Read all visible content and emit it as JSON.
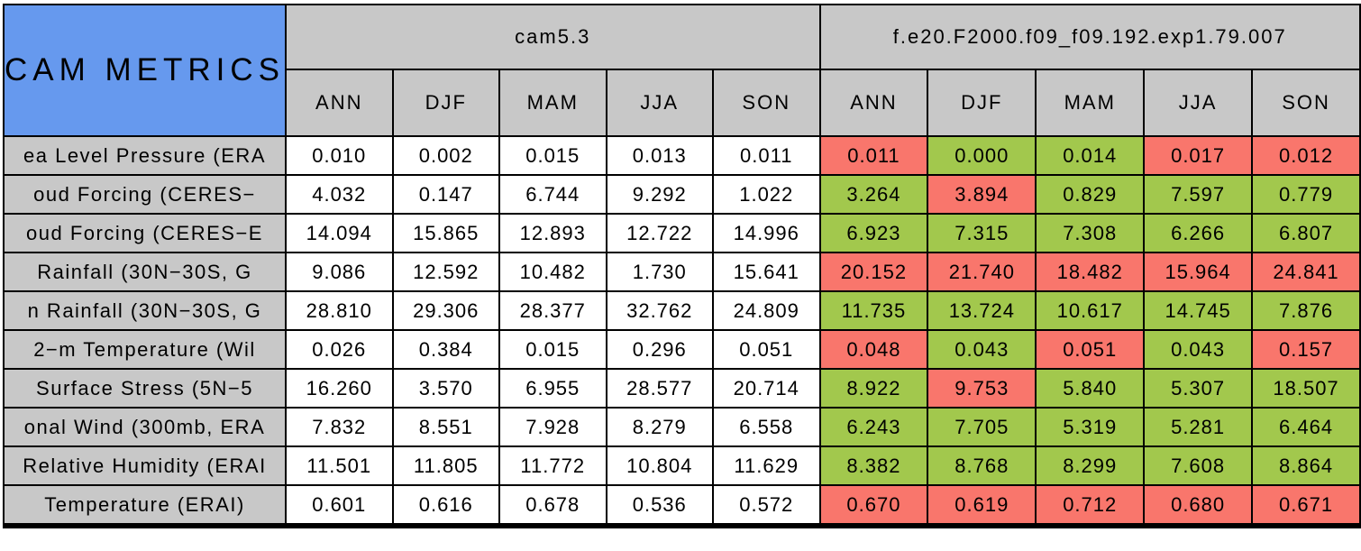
{
  "chart_data": {
    "type": "table",
    "title": "CAM METRICS",
    "column_groups": [
      {
        "label": "cam5.3",
        "seasons": [
          "ANN",
          "DJF",
          "MAM",
          "JJA",
          "SON"
        ]
      },
      {
        "label": "f.e20.F2000.f09_f09.192.exp1.79.007",
        "seasons": [
          "ANN",
          "DJF",
          "MAM",
          "JJA",
          "SON"
        ]
      }
    ],
    "colors": {
      "title_bg": "#6699EE",
      "header_bg": "#C8C8C8",
      "neutral_cell_bg": "#FFFFFF",
      "better_bg": "#A2C84D",
      "worse_bg": "#F9766C",
      "border": "#000000"
    },
    "rows": [
      {
        "label": "ea Level Pressure (ERA",
        "cam53": [
          "0.010",
          "0.002",
          "0.015",
          "0.013",
          "0.011"
        ],
        "exp": [
          {
            "v": "0.011",
            "status": "worse"
          },
          {
            "v": "0.000",
            "status": "better"
          },
          {
            "v": "0.014",
            "status": "better"
          },
          {
            "v": "0.017",
            "status": "worse"
          },
          {
            "v": "0.012",
            "status": "worse"
          }
        ]
      },
      {
        "label": "oud Forcing (CERES−",
        "cam53": [
          "4.032",
          "0.147",
          "6.744",
          "9.292",
          "1.022"
        ],
        "exp": [
          {
            "v": "3.264",
            "status": "better"
          },
          {
            "v": "3.894",
            "status": "worse"
          },
          {
            "v": "0.829",
            "status": "better"
          },
          {
            "v": "7.597",
            "status": "better"
          },
          {
            "v": "0.779",
            "status": "better"
          }
        ]
      },
      {
        "label": "oud Forcing (CERES−E",
        "cam53": [
          "14.094",
          "15.865",
          "12.893",
          "12.722",
          "14.996"
        ],
        "exp": [
          {
            "v": "6.923",
            "status": "better"
          },
          {
            "v": "7.315",
            "status": "better"
          },
          {
            "v": "7.308",
            "status": "better"
          },
          {
            "v": "6.266",
            "status": "better"
          },
          {
            "v": "6.807",
            "status": "better"
          }
        ]
      },
      {
        "label": " Rainfall (30N−30S, G",
        "cam53": [
          "9.086",
          "12.592",
          "10.482",
          "1.730",
          "15.641"
        ],
        "exp": [
          {
            "v": "20.152",
            "status": "worse"
          },
          {
            "v": "21.740",
            "status": "worse"
          },
          {
            "v": "18.482",
            "status": "worse"
          },
          {
            "v": "15.964",
            "status": "worse"
          },
          {
            "v": "24.841",
            "status": "worse"
          }
        ]
      },
      {
        "label": "n Rainfall (30N−30S, G",
        "cam53": [
          "28.810",
          "29.306",
          "28.377",
          "32.762",
          "24.809"
        ],
        "exp": [
          {
            "v": "11.735",
            "status": "better"
          },
          {
            "v": "13.724",
            "status": "better"
          },
          {
            "v": "10.617",
            "status": "better"
          },
          {
            "v": "14.745",
            "status": "better"
          },
          {
            "v": "7.876",
            "status": "better"
          }
        ]
      },
      {
        "label": "2−m Temperature (Wil",
        "cam53": [
          "0.026",
          "0.384",
          "0.015",
          "0.296",
          "0.051"
        ],
        "exp": [
          {
            "v": "0.048",
            "status": "worse"
          },
          {
            "v": "0.043",
            "status": "better"
          },
          {
            "v": "0.051",
            "status": "worse"
          },
          {
            "v": "0.043",
            "status": "better"
          },
          {
            "v": "0.157",
            "status": "worse"
          }
        ]
      },
      {
        "label": " Surface Stress (5N−5",
        "cam53": [
          "16.260",
          "3.570",
          "6.955",
          "28.577",
          "20.714"
        ],
        "exp": [
          {
            "v": "8.922",
            "status": "better"
          },
          {
            "v": "9.753",
            "status": "worse"
          },
          {
            "v": "5.840",
            "status": "better"
          },
          {
            "v": "5.307",
            "status": "better"
          },
          {
            "v": "18.507",
            "status": "better"
          }
        ]
      },
      {
        "label": "onal Wind (300mb, ERA",
        "cam53": [
          "7.832",
          "8.551",
          "7.928",
          "8.279",
          "6.558"
        ],
        "exp": [
          {
            "v": "6.243",
            "status": "better"
          },
          {
            "v": "7.705",
            "status": "better"
          },
          {
            "v": "5.319",
            "status": "better"
          },
          {
            "v": "5.281",
            "status": "better"
          },
          {
            "v": "6.464",
            "status": "better"
          }
        ]
      },
      {
        "label": "Relative Humidity (ERAI",
        "cam53": [
          "11.501",
          "11.805",
          "11.772",
          "10.804",
          "11.629"
        ],
        "exp": [
          {
            "v": "8.382",
            "status": "better"
          },
          {
            "v": "8.768",
            "status": "better"
          },
          {
            "v": "8.299",
            "status": "better"
          },
          {
            "v": "7.608",
            "status": "better"
          },
          {
            "v": "8.864",
            "status": "better"
          }
        ]
      },
      {
        "label": " Temperature (ERAI)",
        "cam53": [
          "0.601",
          "0.616",
          "0.678",
          "0.536",
          "0.572"
        ],
        "exp": [
          {
            "v": "0.670",
            "status": "worse"
          },
          {
            "v": "0.619",
            "status": "worse"
          },
          {
            "v": "0.712",
            "status": "worse"
          },
          {
            "v": "0.680",
            "status": "worse"
          },
          {
            "v": "0.671",
            "status": "worse"
          }
        ]
      }
    ]
  }
}
